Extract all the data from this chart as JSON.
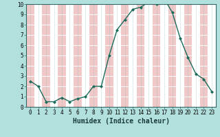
{
  "x": [
    0,
    1,
    2,
    3,
    4,
    5,
    6,
    7,
    8,
    9,
    10,
    11,
    12,
    13,
    14,
    15,
    16,
    17,
    18,
    19,
    20,
    21,
    22,
    23
  ],
  "y": [
    2.5,
    2.0,
    0.5,
    0.5,
    0.9,
    0.5,
    0.8,
    1.0,
    2.0,
    2.0,
    5.0,
    7.5,
    8.5,
    9.5,
    9.7,
    10.2,
    10.0,
    10.5,
    9.2,
    6.7,
    4.8,
    3.2,
    2.7,
    1.5
  ],
  "xlabel": "Humidex (Indice chaleur)",
  "ylim": [
    0,
    10
  ],
  "xlim": [
    -0.5,
    23.5
  ],
  "line_color": "#1a6b5a",
  "marker": "D",
  "marker_size": 2.5,
  "bg_color": "#b2e0dd",
  "grid_white": "#ffffff",
  "grid_pink": "#f0c8c8",
  "yticks": [
    0,
    1,
    2,
    3,
    4,
    5,
    6,
    7,
    8,
    9,
    10
  ],
  "xticks": [
    0,
    1,
    2,
    3,
    4,
    5,
    6,
    7,
    8,
    9,
    10,
    11,
    12,
    13,
    14,
    15,
    16,
    17,
    18,
    19,
    20,
    21,
    22,
    23
  ],
  "xlabel_fontsize": 7,
  "tick_fontsize": 5.5,
  "linewidth": 1.0
}
